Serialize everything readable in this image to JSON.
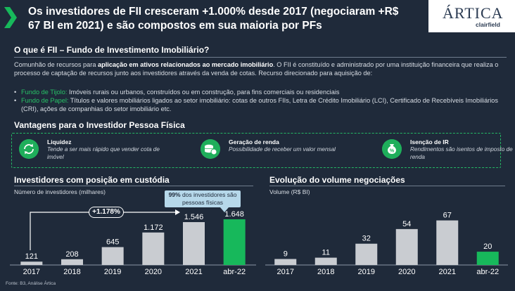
{
  "header": {
    "headline": "Os investidores de FII cresceram +1.000% desde 2017 (negociaram +R$ 67 BI em 2021) e são compostos em sua maioria por PFs",
    "logo_main": "ÁRTICA",
    "logo_sub": "clairfield"
  },
  "definition": {
    "title": "O que é FII – Fundo de Investimento Imobiliário?",
    "intro_pre": "Comunhão de recursos para ",
    "intro_bold": "aplicação em ativos relacionados ao mercado imobiliário",
    "intro_post": ". O FII é constituído e administrado por uma instituição financeira que realiza o processo de captação de recursos junto aos investidores através da venda de cotas. Recurso direcionado para aquisição de:",
    "bullets": [
      {
        "label": "Fundo de Tijolo:",
        "text": " Imóveis rurais ou urbanos, construídos ou em construção, para fins comerciais ou residenciais"
      },
      {
        "label": "Fundo de Papel:",
        "text": " Títulos e valores mobiliários ligados ao setor imobiliário: cotas de outros FIIs, Letra de Crédito Imobiliário (LCI), Certificado de Recebíveis Imobiliários (CRI), ações de companhias do setor imobiliário etc."
      }
    ]
  },
  "advantages": {
    "title": "Vantagens para o Investidor Pessoa Física",
    "items": [
      {
        "title": "Liquidez",
        "desc": "Tende a ser mais rápido que vender cota de imóvel",
        "icon": "refresh-icon"
      },
      {
        "title": "Geração de renda",
        "desc": "Possibilidade de receber um valor mensal",
        "icon": "coins-icon"
      },
      {
        "title": "Isenção de IR",
        "desc": "Rendimentos são isentos de imposto de renda",
        "icon": "percent-bag-icon"
      }
    ]
  },
  "callout": {
    "bold": "99%",
    "text": " dos investidores são pessoas físicas"
  },
  "growth_label": "+1.178%",
  "source": "Fonte: B3, Análise Ártica",
  "colors": {
    "bar": "#c9ccd1",
    "highlight": "#17b85b",
    "accent": "#27c166"
  },
  "chart_data": [
    {
      "type": "bar",
      "title": "Investidores com posição em custódia",
      "ylabel": "Número de investidores (milhares)",
      "categories": [
        "2017",
        "2018",
        "2019",
        "2020",
        "2021",
        "abr-22"
      ],
      "values": [
        121,
        208,
        645,
        1172,
        1546,
        1648
      ],
      "labels": [
        "121",
        "208",
        "645",
        "1.172",
        "1.546",
        "1.648"
      ],
      "highlight_index": 5,
      "ylim": [
        0,
        1850
      ]
    },
    {
      "type": "bar",
      "title": "Evolução do volume negociações",
      "ylabel": "Volume (R$ BI)",
      "categories": [
        "2017",
        "2018",
        "2019",
        "2020",
        "2021",
        "abr-22"
      ],
      "values": [
        9,
        11,
        32,
        54,
        67,
        20
      ],
      "labels": [
        "9",
        "11",
        "32",
        "54",
        "67",
        "20"
      ],
      "highlight_index": 5,
      "ylim": [
        0,
        75
      ]
    }
  ]
}
